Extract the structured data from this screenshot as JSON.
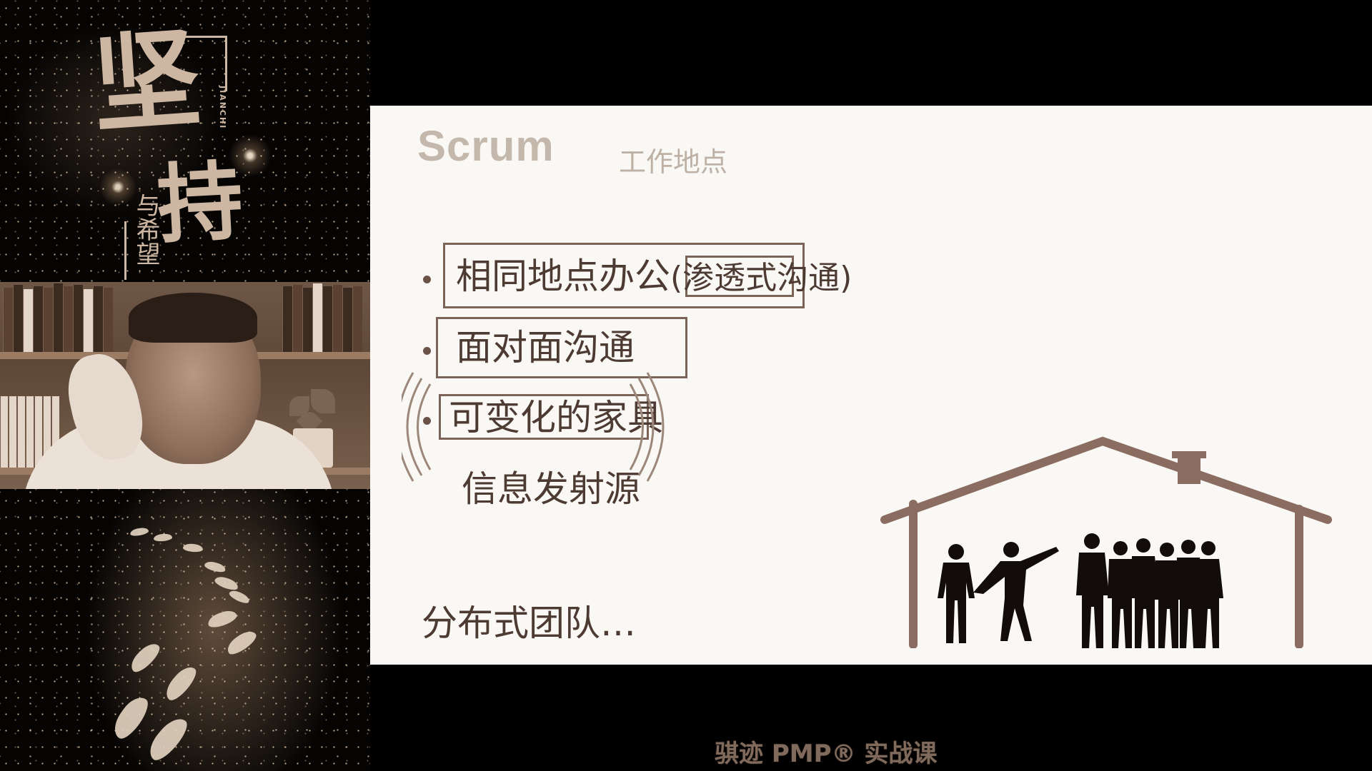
{
  "poster": {
    "title_main": "坚",
    "title_second": "持",
    "subtitle": "与希望",
    "pinyin": "JIANCHI"
  },
  "slide": {
    "title": "Scrum",
    "subtitle": "工作地点",
    "bullets": [
      {
        "main": "相同地点办公",
        "paren": "(渗透式沟通)"
      },
      {
        "main": "面对面沟通"
      },
      {
        "main": "可变化的家具"
      }
    ],
    "info_radiator": "信息发射源",
    "distributed_team": "分布式团队…"
  },
  "footer": {
    "brand": "骐迹 PMP® 实战课"
  },
  "colors": {
    "slide_bg": "#faf8f5",
    "accent_brown": "#7b6358",
    "text_brown": "#4d3b33",
    "title_gray": "#c4b8ad"
  },
  "icons": [
    "house-icon",
    "team-silhouette-icon",
    "signal-waves-icon",
    "footprints-icon"
  ]
}
